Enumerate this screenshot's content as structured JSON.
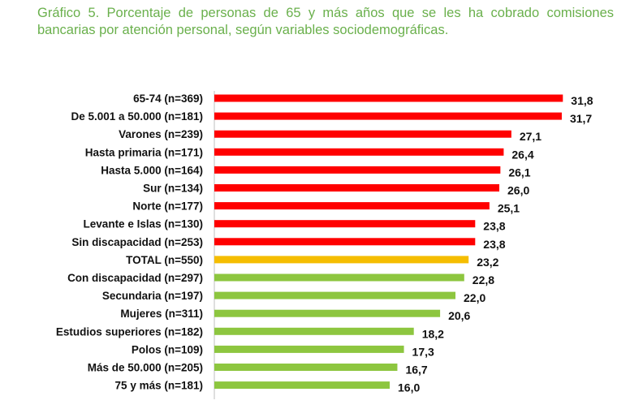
{
  "chart_data": {
    "type": "bar",
    "orientation": "horizontal",
    "title": "Gráfico 5. Porcentaje de personas de 65 y más años que se les ha cobrado comisiones bancarias por atención personal, según variables sociodemográficas.",
    "xlabel": "",
    "ylabel": "",
    "xlim": [
      0,
      35
    ],
    "categories": [
      "65-74 (n=369)",
      "De 5.001 a 50.000 (n=181)",
      "Varones (n=239)",
      "Hasta primaria (n=171)",
      "Hasta 5.000 (n=164)",
      "Sur (n=134)",
      "Norte (n=177)",
      "Levante e Islas (n=130)",
      "Sin discapacidad (n=253)",
      "TOTAL (n=550)",
      "Con discapacidad (n=297)",
      "Secundaria (n=197)",
      "Mujeres (n=311)",
      "Estudios superiores (n=182)",
      "Polos (n=109)",
      "Más de 50.000 (n=205)",
      "75 y más (n=181)"
    ],
    "values": [
      31.8,
      31.7,
      27.1,
      26.4,
      26.1,
      26.0,
      25.1,
      23.8,
      23.8,
      23.2,
      22.8,
      22.0,
      20.6,
      18.2,
      17.3,
      16.7,
      16.0
    ],
    "value_labels": [
      "31,8",
      "31,7",
      "27,1",
      "26,4",
      "26,1",
      "26,0",
      "25,1",
      "23,8",
      "23,8",
      "23,2",
      "22,8",
      "22,0",
      "20,6",
      "18,2",
      "17,3",
      "16,7",
      "16,0"
    ],
    "bar_colors": [
      "#ff0000",
      "#ff0000",
      "#ff0000",
      "#ff0000",
      "#ff0000",
      "#ff0000",
      "#ff0000",
      "#ff0000",
      "#ff0000",
      "#f5bd00",
      "#8dc63f",
      "#8dc63f",
      "#8dc63f",
      "#8dc63f",
      "#8dc63f",
      "#8dc63f",
      "#8dc63f"
    ],
    "grid": false,
    "legend": "none"
  },
  "colors": {
    "title": "#6ab04c",
    "above_total": "#ff0000",
    "total": "#f5bd00",
    "below_total": "#8dc63f",
    "axis": "#bfbfbf"
  }
}
